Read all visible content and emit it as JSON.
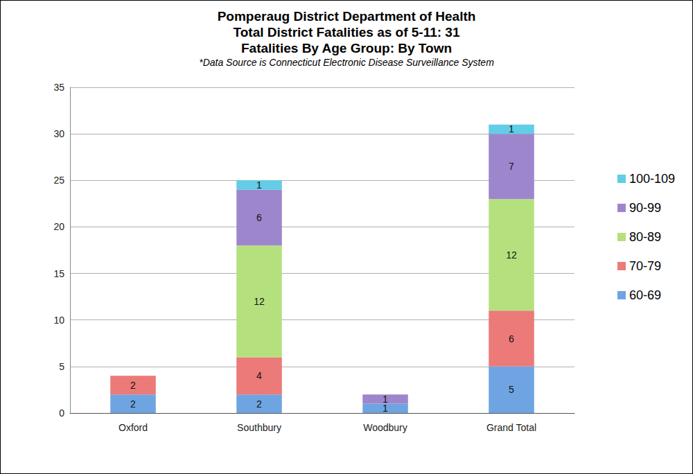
{
  "chart_data": {
    "type": "bar",
    "title": "Pomperaug District Department of Health\nTotal District Fatalities as of 5-11: 31\nFatalities By Age Group: By Town",
    "subtitle": "*Data Source is Connecticut Electronic Disease Surveillance System",
    "categories": [
      "Oxford",
      "Southbury",
      "Woodbury",
      "Grand Total"
    ],
    "series": [
      {
        "name": "60-69",
        "color": "#6fa4e3",
        "values": [
          2,
          2,
          1,
          5
        ]
      },
      {
        "name": "70-79",
        "color": "#eb7a78",
        "values": [
          2,
          4,
          0,
          6
        ]
      },
      {
        "name": "80-89",
        "color": "#b5e07e",
        "values": [
          0,
          12,
          0,
          12
        ]
      },
      {
        "name": "90-99",
        "color": "#9d86cc",
        "values": [
          0,
          6,
          1,
          7
        ]
      },
      {
        "name": "100-109",
        "color": "#62cde6",
        "values": [
          0,
          1,
          0,
          1
        ]
      }
    ],
    "ylim": [
      0,
      35
    ],
    "yticks": [
      0,
      5,
      10,
      15,
      20,
      25,
      30,
      35
    ],
    "grid": true,
    "stacked": true,
    "data_labels": true,
    "legend": "right"
  }
}
